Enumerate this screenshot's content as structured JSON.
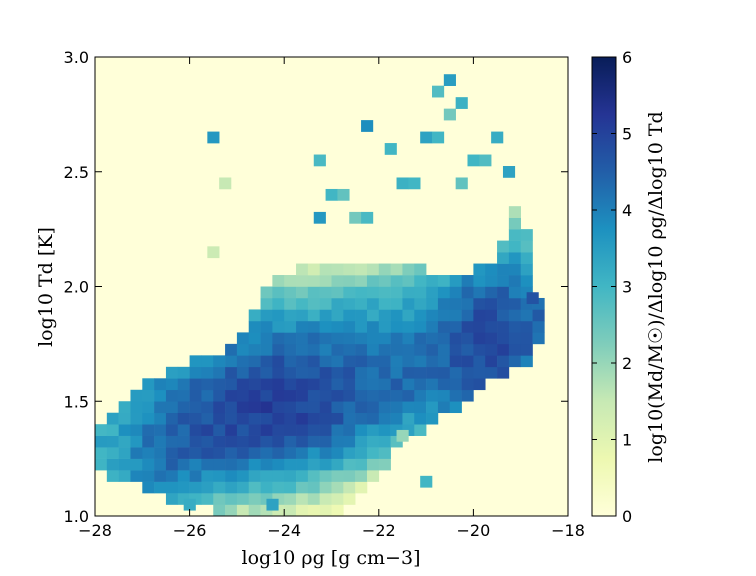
{
  "chart_data": {
    "type": "heatmap",
    "xlabel": "log10 ρg [g cm−3]",
    "ylabel": "log10 Td [K]",
    "colorbar_label": "log10(Md/M☉)/Δlog10 ρg/Δlog10 Td",
    "xlim": [
      -28,
      -18
    ],
    "ylim": [
      1.0,
      3.0
    ],
    "clim": [
      0,
      6
    ],
    "x_ticks": [
      -28,
      -26,
      -24,
      -22,
      -20,
      -18
    ],
    "y_ticks": [
      1.0,
      1.5,
      2.0,
      2.5,
      3.0
    ],
    "colorbar_ticks": [
      0,
      1,
      2,
      3,
      4,
      5,
      6
    ],
    "x_tick_labels": [
      "−28",
      "−26",
      "−24",
      "−22",
      "−20",
      "−18"
    ],
    "y_tick_labels": [
      "1.0",
      "1.5",
      "2.0",
      "2.5",
      "3.0"
    ],
    "colorbar_tick_labels": [
      "0",
      "1",
      "2",
      "3",
      "4",
      "5",
      "6"
    ],
    "grid": false,
    "colormap": [
      "#ffffd9",
      "#edf8b1",
      "#c7e9b4",
      "#7fcdbb",
      "#41b6c4",
      "#1d91c0",
      "#225ea8",
      "#253494",
      "#081d58"
    ],
    "bin_grid": {
      "x_start": -28,
      "x_step": 0.25,
      "y_start": 1.0,
      "y_step": 0.05
    },
    "ridge": [
      [
        -28,
        1.28
      ],
      [
        -27,
        1.29
      ],
      [
        -26,
        1.36
      ],
      [
        -25,
        1.44
      ],
      [
        -24,
        1.47
      ],
      [
        -23,
        1.51
      ],
      [
        -22,
        1.57
      ],
      [
        -21,
        1.64
      ],
      [
        -20,
        1.72
      ],
      [
        -19.5,
        1.74
      ],
      [
        -18.75,
        1.8
      ]
    ],
    "upper_limit": [
      [
        -28,
        1.35
      ],
      [
        -27.25,
        1.55
      ],
      [
        -26,
        1.67
      ],
      [
        -25,
        1.74
      ],
      [
        -24.3,
        2.05
      ],
      [
        -23,
        2.12
      ],
      [
        -21.5,
        2.1
      ],
      [
        -20.5,
        2.05
      ],
      [
        -19.6,
        2.1
      ],
      [
        -19.2,
        2.3
      ],
      [
        -19,
        2.45
      ],
      [
        -18.75,
        2.05
      ],
      [
        -18.5,
        1.85
      ]
    ],
    "lower_limit": [
      [
        -28,
        1.2
      ],
      [
        -27,
        1.12
      ],
      [
        -26,
        1.04
      ],
      [
        -24.5,
        1.0
      ],
      [
        -23,
        1.0
      ],
      [
        -22,
        1.15
      ],
      [
        -21.5,
        1.32
      ],
      [
        -20.5,
        1.45
      ],
      [
        -19.5,
        1.6
      ],
      [
        -18.75,
        1.68
      ],
      [
        -18.5,
        1.85
      ]
    ],
    "outlier_cells": [
      [
        -25.5,
        2.65,
        3.6
      ],
      [
        -25.5,
        2.15,
        1.4
      ],
      [
        -25.25,
        2.45,
        1.5
      ],
      [
        -23.25,
        2.55,
        2.9
      ],
      [
        -23.0,
        2.4,
        3.0
      ],
      [
        -22.75,
        2.4,
        2.6
      ],
      [
        -22.5,
        2.3,
        2.4
      ],
      [
        -22.25,
        2.3,
        2.9
      ],
      [
        -22.25,
        2.7,
        3.8
      ],
      [
        -21.75,
        2.6,
        3.0
      ],
      [
        -21.5,
        2.45,
        3.1
      ],
      [
        -21.25,
        2.45,
        3.0
      ],
      [
        -21.0,
        2.65,
        3.4
      ],
      [
        -20.75,
        2.65,
        3.0
      ],
      [
        -20.75,
        2.85,
        2.8
      ],
      [
        -20.5,
        2.9,
        3.5
      ],
      [
        -20.5,
        2.75,
        2.4
      ],
      [
        -20.25,
        2.8,
        3.1
      ],
      [
        -20.25,
        2.45,
        2.6
      ],
      [
        -20.0,
        2.55,
        3.0
      ],
      [
        -19.75,
        2.55,
        2.8
      ],
      [
        -19.5,
        2.65,
        3.2
      ],
      [
        -19.25,
        2.5,
        3.4
      ],
      [
        -18.75,
        1.95,
        4.7
      ],
      [
        -23.25,
        2.3,
        3.6
      ],
      [
        -26.0,
        1.05,
        3.2
      ],
      [
        -24.25,
        1.05,
        3.4
      ],
      [
        -21.0,
        1.15,
        3.0
      ],
      [
        -21.5,
        1.35,
        2.0
      ]
    ]
  }
}
